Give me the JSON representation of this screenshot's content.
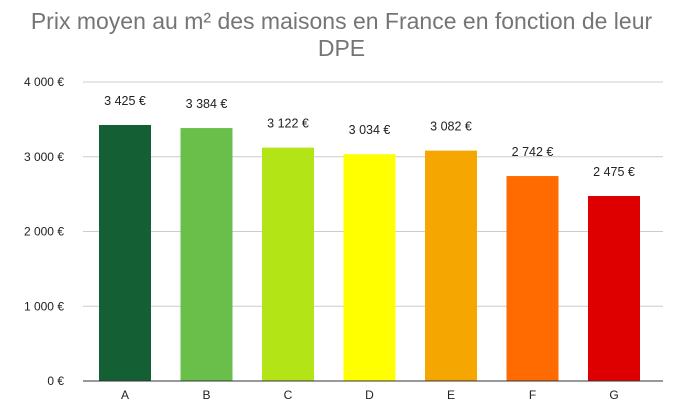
{
  "chart_data": {
    "type": "bar",
    "title_line1": "Prix moyen au m² des maisons en France en fonction de leur",
    "title_line2": "DPE",
    "categories": [
      "A",
      "B",
      "C",
      "D",
      "E",
      "F",
      "G"
    ],
    "values": [
      3425,
      3384,
      3122,
      3034,
      3082,
      2742,
      2475
    ],
    "value_labels": [
      "3 425 €",
      "3 384 €",
      "3 122 €",
      "3 034 €",
      "3 082 €",
      "2 742 €",
      "2 475 €"
    ],
    "colors": [
      "#145f33",
      "#6abf4b",
      "#b3e516",
      "#ffff00",
      "#f5a600",
      "#ff6b00",
      "#de0000"
    ],
    "ylim": [
      0,
      4000
    ],
    "yticks": [
      0,
      1000,
      2000,
      3000,
      4000
    ],
    "ytick_labels": [
      "0 €",
      "1 000 €",
      "2 000 €",
      "3 000 €",
      "4 000 €"
    ],
    "xlabel": "",
    "ylabel": "",
    "grid": true,
    "gridline_color": "#cccccc",
    "axis_color": "#333333"
  }
}
